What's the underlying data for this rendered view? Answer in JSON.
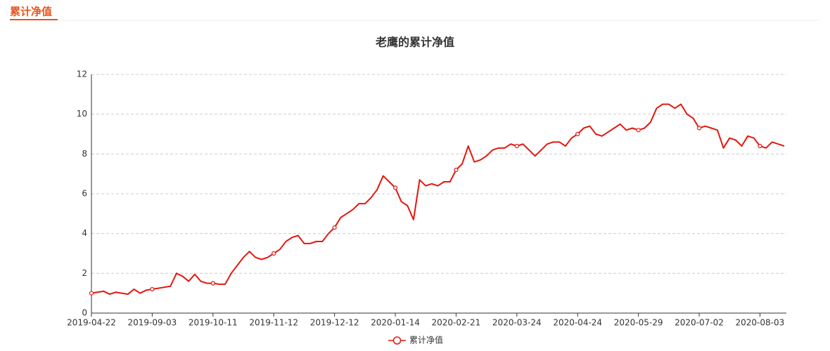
{
  "tab": "累计净值",
  "chart_data": {
    "type": "line",
    "title": "老鹰的累计净值",
    "categories": [
      "2019-04-22",
      null,
      null,
      null,
      null,
      null,
      null,
      null,
      null,
      null,
      "2019-09-03",
      null,
      null,
      null,
      null,
      null,
      null,
      null,
      null,
      null,
      "2019-10-11",
      null,
      null,
      null,
      null,
      null,
      null,
      null,
      null,
      null,
      "2019-11-12",
      null,
      null,
      null,
      null,
      null,
      null,
      null,
      null,
      null,
      "2019-12-12",
      null,
      null,
      null,
      null,
      null,
      null,
      null,
      null,
      null,
      "2020-01-14",
      null,
      null,
      null,
      null,
      null,
      null,
      null,
      null,
      null,
      "2020-02-21",
      null,
      null,
      null,
      null,
      null,
      null,
      null,
      null,
      null,
      "2020-03-24",
      null,
      null,
      null,
      null,
      null,
      null,
      null,
      null,
      null,
      "2020-04-24",
      null,
      null,
      null,
      null,
      null,
      null,
      null,
      null,
      null,
      "2020-05-29",
      null,
      null,
      null,
      null,
      null,
      null,
      null,
      null,
      null,
      "2020-07-02",
      null,
      null,
      null,
      null,
      null,
      null,
      null,
      null,
      null,
      "2020-08-03",
      null,
      null,
      null,
      null
    ],
    "series": [
      {
        "name": "累计净值",
        "color": "#e2180f",
        "values": [
          1.0,
          1.05,
          1.1,
          0.95,
          1.05,
          1.0,
          0.95,
          1.2,
          1.0,
          1.15,
          1.2,
          1.25,
          1.3,
          1.35,
          2.0,
          1.85,
          1.6,
          1.95,
          1.6,
          1.5,
          1.5,
          1.45,
          1.45,
          2.0,
          2.4,
          2.8,
          3.1,
          2.8,
          2.7,
          2.8,
          3.0,
          3.2,
          3.6,
          3.8,
          3.9,
          3.5,
          3.5,
          3.6,
          3.6,
          4.0,
          4.3,
          4.8,
          5.0,
          5.2,
          5.5,
          5.5,
          5.8,
          6.2,
          6.9,
          6.6,
          6.3,
          5.6,
          5.4,
          4.7,
          6.7,
          6.4,
          6.5,
          6.4,
          6.6,
          6.6,
          7.2,
          7.5,
          8.4,
          7.6,
          7.7,
          7.9,
          8.2,
          8.3,
          8.3,
          8.5,
          8.4,
          8.5,
          8.2,
          7.9,
          8.2,
          8.5,
          8.6,
          8.6,
          8.4,
          8.8,
          9.0,
          9.3,
          9.4,
          9.0,
          8.9,
          9.1,
          9.3,
          9.5,
          9.2,
          9.3,
          9.2,
          9.3,
          9.6,
          10.3,
          10.5,
          10.5,
          10.3,
          10.5,
          10.0,
          9.8,
          9.3,
          9.4,
          9.3,
          9.2,
          8.3,
          8.8,
          8.7,
          8.4,
          8.9,
          8.8,
          8.4,
          8.3,
          8.6,
          8.5,
          8.4
        ]
      }
    ],
    "ylim": [
      0,
      12
    ],
    "yticks": [
      0,
      2,
      4,
      6,
      8,
      10,
      12
    ],
    "grid": true
  }
}
